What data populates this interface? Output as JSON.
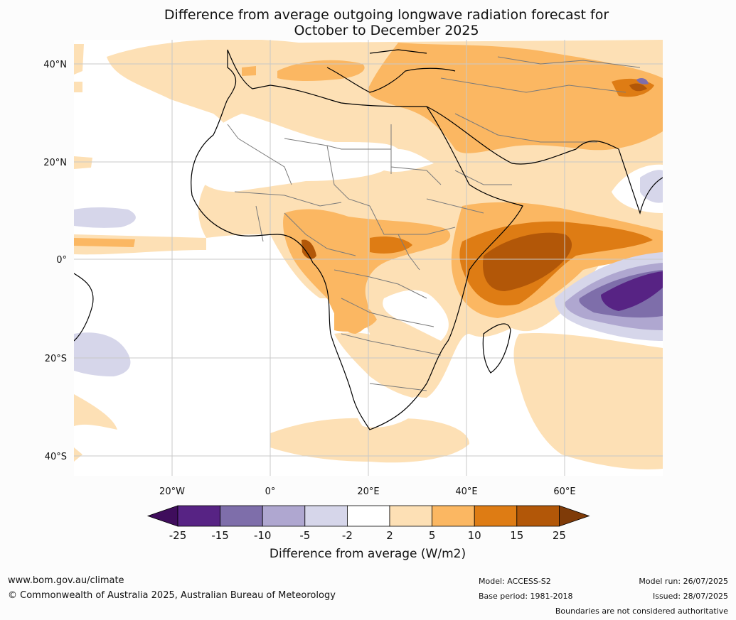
{
  "title_line1": "Difference from average outgoing longwave radiation forecast for",
  "title_line2": "October to December 2025",
  "lat_labels": [
    "40°N",
    "20°N",
    "0°",
    "20°S",
    "40°S"
  ],
  "lon_labels": [
    "20°W",
    "0°",
    "20°E",
    "40°E",
    "60°E"
  ],
  "colorbar": {
    "ticks": [
      "-25",
      "-15",
      "-10",
      "-5",
      "-2",
      "2",
      "5",
      "10",
      "15",
      "25"
    ],
    "colors": [
      "#3f0d5c",
      "#572384",
      "#7e6eaa",
      "#afa7d0",
      "#d6d6ea",
      "#ffffff",
      "#fde0b5",
      "#fbb762",
      "#de7c14",
      "#b25708",
      "#7f3b08"
    ],
    "label": "Difference from average (W/m2)"
  },
  "footer": {
    "url": "www.bom.gov.au/climate",
    "copyright": "© Commonwealth of Australia 2025, Australian Bureau of Meteorology",
    "model": "Model: ACCESS-S2",
    "base_period": "Base period: 1981-2018",
    "model_run": "Model run: 26/07/2025",
    "issued": "Issued: 28/07/2025",
    "disclaimer": "Boundaries are not considered authoritative"
  }
}
